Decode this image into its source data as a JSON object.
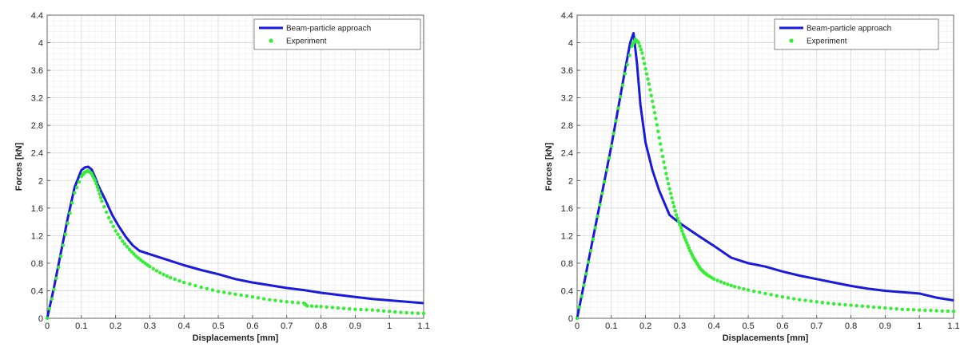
{
  "chart_data": [
    {
      "type": "line",
      "title": "",
      "xlabel": "Displacements [mm]",
      "ylabel": "Forces [kN]",
      "xlim": [
        0,
        1.1
      ],
      "ylim": [
        0,
        4.4
      ],
      "xticks": [
        0,
        0.1,
        0.2,
        0.3,
        0.4,
        0.5,
        0.6,
        0.7,
        0.8,
        0.9,
        1,
        1.1
      ],
      "yticks": [
        0,
        0.4,
        0.8,
        1.2,
        1.6,
        2,
        2.4,
        2.8,
        3.2,
        3.6,
        4,
        4.4
      ],
      "grid": true,
      "minor_grid": true,
      "legend_position": "top-right",
      "series": [
        {
          "name": "Beam-particle approach",
          "style": "line",
          "color": "#1a1adc",
          "x": [
            0,
            0.02,
            0.04,
            0.06,
            0.08,
            0.1,
            0.11,
            0.12,
            0.13,
            0.14,
            0.15,
            0.17,
            0.19,
            0.21,
            0.23,
            0.25,
            0.27,
            0.3,
            0.35,
            0.4,
            0.45,
            0.5,
            0.55,
            0.6,
            0.65,
            0.7,
            0.75,
            0.8,
            0.85,
            0.9,
            0.95,
            1.0,
            1.05,
            1.1
          ],
          "y": [
            0,
            0.45,
            0.95,
            1.45,
            1.9,
            2.15,
            2.19,
            2.2,
            2.16,
            2.05,
            1.92,
            1.72,
            1.5,
            1.33,
            1.18,
            1.06,
            0.98,
            0.93,
            0.85,
            0.77,
            0.7,
            0.64,
            0.57,
            0.52,
            0.48,
            0.44,
            0.41,
            0.37,
            0.34,
            0.31,
            0.28,
            0.26,
            0.24,
            0.22
          ]
        },
        {
          "name": "Experiment",
          "style": "markers",
          "color": "#33ee33",
          "x": [
            0,
            0.02,
            0.04,
            0.06,
            0.08,
            0.1,
            0.11,
            0.12,
            0.13,
            0.14,
            0.15,
            0.16,
            0.18,
            0.2,
            0.22,
            0.24,
            0.26,
            0.28,
            0.3,
            0.33,
            0.36,
            0.4,
            0.45,
            0.5,
            0.55,
            0.6,
            0.65,
            0.7,
            0.75,
            0.76,
            0.8,
            0.85,
            0.9,
            0.95,
            1.0,
            1.05,
            1.1
          ],
          "y": [
            0,
            0.42,
            0.9,
            1.38,
            1.82,
            2.06,
            2.12,
            2.14,
            2.1,
            2.0,
            1.86,
            1.7,
            1.46,
            1.27,
            1.12,
            1.0,
            0.9,
            0.82,
            0.75,
            0.66,
            0.59,
            0.52,
            0.45,
            0.39,
            0.35,
            0.31,
            0.27,
            0.24,
            0.22,
            0.18,
            0.17,
            0.15,
            0.13,
            0.12,
            0.1,
            0.08,
            0.07
          ]
        }
      ]
    },
    {
      "type": "line",
      "title": "",
      "xlabel": "Displacements [mm]",
      "ylabel": "Forces [kN]",
      "xlim": [
        0,
        1.1
      ],
      "ylim": [
        0,
        4.4
      ],
      "xticks": [
        0,
        0.1,
        0.2,
        0.3,
        0.4,
        0.5,
        0.6,
        0.7,
        0.8,
        0.9,
        1,
        1.1
      ],
      "yticks": [
        0,
        0.4,
        0.8,
        1.2,
        1.6,
        2,
        2.4,
        2.8,
        3.2,
        3.6,
        4,
        4.4
      ],
      "grid": true,
      "minor_grid": true,
      "legend_position": "top-right",
      "series": [
        {
          "name": "Beam-particle approach",
          "style": "line",
          "color": "#1a1adc",
          "x": [
            0,
            0.02,
            0.04,
            0.06,
            0.08,
            0.1,
            0.12,
            0.14,
            0.155,
            0.165,
            0.175,
            0.185,
            0.2,
            0.22,
            0.24,
            0.27,
            0.3,
            0.33,
            0.36,
            0.4,
            0.45,
            0.5,
            0.55,
            0.6,
            0.65,
            0.7,
            0.75,
            0.8,
            0.85,
            0.9,
            0.95,
            1.0,
            1.05,
            1.1
          ],
          "y": [
            0,
            0.5,
            1.0,
            1.5,
            2.0,
            2.5,
            3.05,
            3.6,
            4.0,
            4.14,
            3.7,
            3.1,
            2.55,
            2.15,
            1.85,
            1.5,
            1.38,
            1.28,
            1.18,
            1.05,
            0.88,
            0.8,
            0.75,
            0.68,
            0.62,
            0.57,
            0.52,
            0.47,
            0.43,
            0.4,
            0.38,
            0.36,
            0.3,
            0.26
          ]
        },
        {
          "name": "Experiment",
          "style": "markers",
          "color": "#33ee33",
          "x": [
            0,
            0.02,
            0.04,
            0.06,
            0.08,
            0.1,
            0.12,
            0.14,
            0.16,
            0.17,
            0.18,
            0.19,
            0.2,
            0.21,
            0.22,
            0.23,
            0.24,
            0.25,
            0.26,
            0.27,
            0.28,
            0.29,
            0.3,
            0.31,
            0.32,
            0.33,
            0.34,
            0.35,
            0.36,
            0.37,
            0.38,
            0.4,
            0.43,
            0.46,
            0.5,
            0.55,
            0.6,
            0.65,
            0.7,
            0.75,
            0.8,
            0.85,
            0.9,
            0.95,
            1.0,
            1.05,
            1.1
          ],
          "y": [
            0,
            0.48,
            0.98,
            1.48,
            1.98,
            2.5,
            3.05,
            3.55,
            3.95,
            4.05,
            4.0,
            3.85,
            3.62,
            3.4,
            3.15,
            2.9,
            2.62,
            2.35,
            2.1,
            1.88,
            1.68,
            1.5,
            1.36,
            1.22,
            1.1,
            0.98,
            0.88,
            0.8,
            0.72,
            0.67,
            0.63,
            0.57,
            0.51,
            0.46,
            0.41,
            0.36,
            0.31,
            0.27,
            0.24,
            0.21,
            0.19,
            0.17,
            0.15,
            0.13,
            0.12,
            0.11,
            0.1
          ]
        }
      ]
    }
  ]
}
